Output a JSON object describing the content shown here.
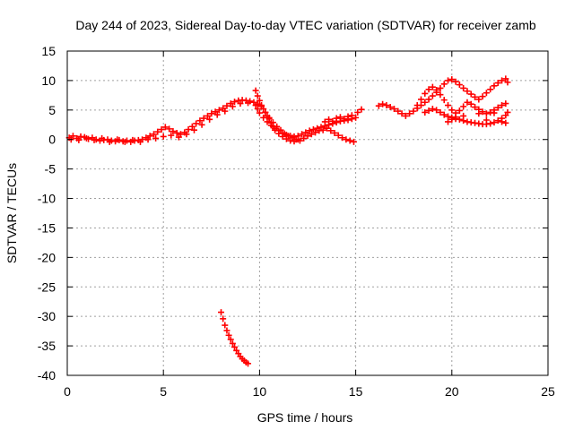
{
  "chart_data": {
    "type": "scatter",
    "title": "Day 244 of 2023, Sidereal Day-to-day VTEC variation (SDTVAR) for receiver zamb",
    "xlabel": "GPS time / hours",
    "ylabel": "SDTVAR / TECUs",
    "xlim": [
      0,
      25
    ],
    "ylim": [
      -40,
      15
    ],
    "xticks": [
      0,
      5,
      10,
      15,
      20,
      25
    ],
    "yticks": [
      15,
      10,
      5,
      0,
      -5,
      -10,
      -15,
      -20,
      -25,
      -30,
      -35,
      -40
    ],
    "grid": true,
    "marker": "plus",
    "color": "#ff0000",
    "series": [
      {
        "name": "SDTVAR",
        "points": [
          [
            0.1,
            0.3
          ],
          [
            0.3,
            0.6
          ],
          [
            0.5,
            0.2
          ],
          [
            0.7,
            0.5
          ],
          [
            0.9,
            0.4
          ],
          [
            1.1,
            0.1
          ],
          [
            1.3,
            0.3
          ],
          [
            1.5,
            0.0
          ],
          [
            1.7,
            -0.2
          ],
          [
            1.9,
            -0.1
          ],
          [
            2.1,
            0.0
          ],
          [
            2.3,
            -0.2
          ],
          [
            2.5,
            -0.3
          ],
          [
            2.7,
            -0.1
          ],
          [
            2.9,
            -0.3
          ],
          [
            3.1,
            -0.2
          ],
          [
            3.3,
            -0.4
          ],
          [
            3.5,
            -0.2
          ],
          [
            3.7,
            -0.1
          ],
          [
            3.9,
            0.0
          ],
          [
            4.1,
            0.3
          ],
          [
            4.3,
            0.6
          ],
          [
            4.5,
            0.9
          ],
          [
            4.7,
            1.3
          ],
          [
            4.9,
            1.7
          ],
          [
            5.1,
            2.1
          ],
          [
            5.3,
            1.8
          ],
          [
            5.5,
            1.4
          ],
          [
            5.7,
            1.1
          ],
          [
            5.9,
            0.9
          ],
          [
            6.1,
            1.2
          ],
          [
            6.3,
            1.7
          ],
          [
            6.5,
            2.2
          ],
          [
            6.7,
            2.7
          ],
          [
            6.9,
            3.2
          ],
          [
            7.1,
            3.6
          ],
          [
            7.3,
            4.0
          ],
          [
            7.5,
            4.4
          ],
          [
            7.7,
            4.7
          ],
          [
            7.9,
            5.0
          ],
          [
            8.1,
            5.3
          ],
          [
            8.3,
            5.7
          ],
          [
            8.5,
            6.1
          ],
          [
            8.7,
            6.4
          ],
          [
            8.9,
            6.6
          ],
          [
            9.1,
            6.7
          ],
          [
            9.3,
            6.6
          ],
          [
            9.5,
            6.5
          ],
          [
            9.7,
            6.3
          ],
          [
            9.8,
            5.8
          ],
          [
            9.9,
            5.2
          ],
          [
            10.0,
            4.5
          ],
          [
            10.2,
            3.7
          ],
          [
            10.4,
            3.0
          ],
          [
            10.6,
            2.4
          ],
          [
            10.8,
            1.9
          ],
          [
            11.0,
            1.5
          ],
          [
            11.2,
            1.1
          ],
          [
            11.4,
            0.8
          ],
          [
            11.6,
            0.6
          ],
          [
            11.8,
            0.5
          ],
          [
            12.0,
            0.6
          ],
          [
            12.2,
            0.9
          ],
          [
            12.4,
            1.2
          ],
          [
            12.6,
            1.5
          ],
          [
            12.8,
            1.7
          ],
          [
            13.0,
            1.9
          ],
          [
            13.2,
            2.1
          ],
          [
            13.4,
            2.3
          ],
          [
            13.6,
            2.5
          ],
          [
            13.8,
            2.7
          ],
          [
            14.0,
            2.9
          ],
          [
            14.2,
            3.1
          ],
          [
            14.4,
            3.2
          ],
          [
            14.6,
            3.3
          ],
          [
            14.8,
            3.5
          ],
          [
            15.0,
            3.7
          ],
          [
            0.2,
            0.0
          ],
          [
            0.6,
            -0.1
          ],
          [
            1.0,
            0.2
          ],
          [
            1.4,
            -0.1
          ],
          [
            1.8,
            0.2
          ],
          [
            2.2,
            -0.4
          ],
          [
            2.6,
            0.0
          ],
          [
            3.0,
            -0.4
          ],
          [
            3.4,
            -0.1
          ],
          [
            3.8,
            -0.4
          ],
          [
            4.2,
            0.0
          ],
          [
            4.6,
            0.2
          ],
          [
            5.0,
            0.5
          ],
          [
            5.4,
            0.7
          ],
          [
            5.8,
            0.4
          ],
          [
            6.2,
            0.9
          ],
          [
            6.6,
            1.6
          ],
          [
            7.0,
            2.5
          ],
          [
            7.4,
            3.4
          ],
          [
            7.8,
            4.2
          ],
          [
            8.2,
            4.8
          ],
          [
            8.6,
            5.6
          ],
          [
            9.0,
            6.1
          ],
          [
            9.4,
            6.2
          ],
          [
            9.9,
            6.0
          ],
          [
            10.1,
            5.6
          ],
          [
            10.3,
            4.6
          ],
          [
            10.5,
            3.7
          ],
          [
            10.7,
            2.9
          ],
          [
            10.9,
            2.2
          ],
          [
            11.1,
            1.6
          ],
          [
            11.3,
            1.0
          ],
          [
            11.5,
            0.6
          ],
          [
            11.7,
            0.3
          ],
          [
            11.9,
            0.0
          ],
          [
            12.1,
            -0.2
          ],
          [
            12.3,
            0.2
          ],
          [
            12.5,
            0.6
          ],
          [
            12.7,
            0.9
          ],
          [
            12.9,
            1.2
          ],
          [
            13.1,
            1.5
          ],
          [
            13.3,
            1.6
          ],
          [
            13.5,
            1.9
          ],
          [
            13.7,
            1.5
          ],
          [
            13.9,
            1.1
          ],
          [
            14.1,
            0.7
          ],
          [
            14.3,
            0.3
          ],
          [
            14.5,
            0.0
          ],
          [
            14.7,
            -0.2
          ],
          [
            14.9,
            -0.4
          ],
          [
            9.8,
            8.3
          ],
          [
            9.9,
            7.4
          ],
          [
            10.0,
            6.6
          ],
          [
            10.1,
            5.8
          ],
          [
            10.2,
            5.2
          ],
          [
            10.3,
            4.6
          ],
          [
            10.4,
            4.0
          ],
          [
            10.5,
            3.5
          ],
          [
            10.6,
            2.8
          ],
          [
            10.7,
            2.2
          ],
          [
            10.8,
            1.6
          ],
          [
            11.0,
            1.0
          ],
          [
            11.2,
            0.5
          ],
          [
            11.4,
            0.1
          ],
          [
            11.6,
            -0.2
          ],
          [
            11.8,
            -0.3
          ],
          [
            12.0,
            0.0
          ],
          [
            13.4,
            3.0
          ],
          [
            13.6,
            3.4
          ],
          [
            13.8,
            3.1
          ],
          [
            14.0,
            3.6
          ],
          [
            14.2,
            3.8
          ],
          [
            14.4,
            3.5
          ],
          [
            14.6,
            3.9
          ],
          [
            14.8,
            4.1
          ],
          [
            15.1,
            4.6
          ],
          [
            15.3,
            5.1
          ],
          [
            16.2,
            5.7
          ],
          [
            16.4,
            6.0
          ],
          [
            16.6,
            5.8
          ],
          [
            16.8,
            5.5
          ],
          [
            17.0,
            5.2
          ],
          [
            17.2,
            4.8
          ],
          [
            17.4,
            4.4
          ],
          [
            17.6,
            4.0
          ],
          [
            17.8,
            4.4
          ],
          [
            18.0,
            4.8
          ],
          [
            18.2,
            5.3
          ],
          [
            18.4,
            5.8
          ],
          [
            18.6,
            6.3
          ],
          [
            18.8,
            6.8
          ],
          [
            19.0,
            7.4
          ],
          [
            19.2,
            8.0
          ],
          [
            19.4,
            8.7
          ],
          [
            19.6,
            9.4
          ],
          [
            19.8,
            10.0
          ],
          [
            20.0,
            10.2
          ],
          [
            20.2,
            9.8
          ],
          [
            20.4,
            9.3
          ],
          [
            20.6,
            8.7
          ],
          [
            20.8,
            8.2
          ],
          [
            21.0,
            7.7
          ],
          [
            21.2,
            7.2
          ],
          [
            21.4,
            6.8
          ],
          [
            21.6,
            7.3
          ],
          [
            21.8,
            7.9
          ],
          [
            22.0,
            8.5
          ],
          [
            22.2,
            9.1
          ],
          [
            22.4,
            9.6
          ],
          [
            22.6,
            10.0
          ],
          [
            22.8,
            10.3
          ],
          [
            22.9,
            9.7
          ],
          [
            18.2,
            5.8
          ],
          [
            18.4,
            6.8
          ],
          [
            18.6,
            7.8
          ],
          [
            18.8,
            8.5
          ],
          [
            19.0,
            8.9
          ],
          [
            19.2,
            8.4
          ],
          [
            19.4,
            7.6
          ],
          [
            19.6,
            6.7
          ],
          [
            19.8,
            5.8
          ],
          [
            20.0,
            5.0
          ],
          [
            20.2,
            4.5
          ],
          [
            20.4,
            4.9
          ],
          [
            20.6,
            5.6
          ],
          [
            20.8,
            6.3
          ],
          [
            21.0,
            6.0
          ],
          [
            21.2,
            5.5
          ],
          [
            21.4,
            5.1
          ],
          [
            21.6,
            4.7
          ],
          [
            21.8,
            4.4
          ],
          [
            22.0,
            4.6
          ],
          [
            22.2,
            5.0
          ],
          [
            22.4,
            5.4
          ],
          [
            22.6,
            5.8
          ],
          [
            22.8,
            6.1
          ],
          [
            18.6,
            4.6
          ],
          [
            18.8,
            4.9
          ],
          [
            19.0,
            5.2
          ],
          [
            19.2,
            5.0
          ],
          [
            19.4,
            4.6
          ],
          [
            19.6,
            4.2
          ],
          [
            19.8,
            3.9
          ],
          [
            20.0,
            3.7
          ],
          [
            20.2,
            3.5
          ],
          [
            20.4,
            3.4
          ],
          [
            20.6,
            3.2
          ],
          [
            20.8,
            3.0
          ],
          [
            21.0,
            2.9
          ],
          [
            21.2,
            2.8
          ],
          [
            21.4,
            2.7
          ],
          [
            21.6,
            2.6
          ],
          [
            21.8,
            2.6
          ],
          [
            22.0,
            2.7
          ],
          [
            22.2,
            2.9
          ],
          [
            22.4,
            3.2
          ],
          [
            22.6,
            3.6
          ],
          [
            22.8,
            4.1
          ],
          [
            22.9,
            4.6
          ],
          [
            19.8,
            3.0
          ],
          [
            20.0,
            3.4
          ],
          [
            20.2,
            3.8
          ],
          [
            20.6,
            4.0
          ],
          [
            21.4,
            4.4
          ],
          [
            21.8,
            3.3
          ],
          [
            22.2,
            4.5
          ],
          [
            22.6,
            3.0
          ],
          [
            22.8,
            2.8
          ],
          [
            8.0,
            -29.3
          ],
          [
            8.1,
            -30.4
          ],
          [
            8.2,
            -31.5
          ],
          [
            8.3,
            -32.4
          ],
          [
            8.4,
            -33.2
          ],
          [
            8.5,
            -33.9
          ],
          [
            8.6,
            -34.6
          ],
          [
            8.7,
            -35.2
          ],
          [
            8.8,
            -35.8
          ],
          [
            8.9,
            -36.3
          ],
          [
            9.0,
            -36.8
          ],
          [
            9.1,
            -37.2
          ],
          [
            9.2,
            -37.5
          ],
          [
            9.3,
            -37.8
          ],
          [
            9.4,
            -38.0
          ]
        ]
      }
    ]
  }
}
